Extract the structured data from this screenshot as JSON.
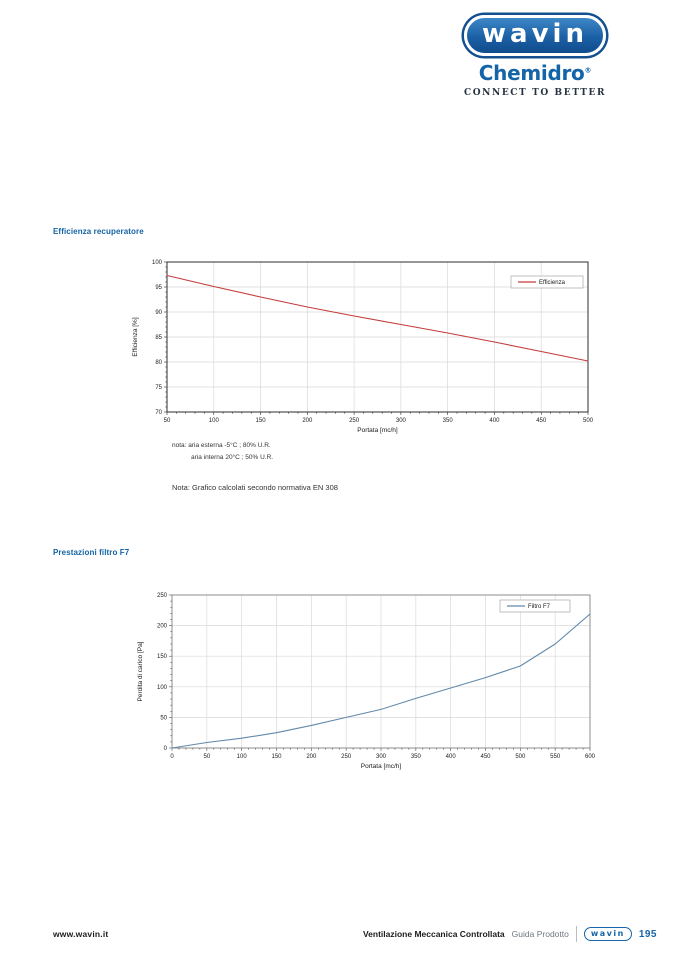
{
  "header": {
    "logo_text": "wavin",
    "brand": "Chemidro",
    "brand_reg": "®",
    "tagline": "CONNECT TO BETTER"
  },
  "sections": [
    {
      "title": "Efficienza recuperatore"
    },
    {
      "title": "Prestazioni filtro F7"
    }
  ],
  "notes": {
    "line1": "nota: aria esterna -5°C ; 80% U.R.",
    "line2": "aria interna 20°C ; 50% U.R.",
    "line3": "Nota: Grafico calcolati secondo normativa EN 308"
  },
  "footer": {
    "website": "www.wavin.it",
    "doc_title": "Ventilazione Meccanica Controllata",
    "doc_subtitle": "Guida Prodotto",
    "logo_text": "wavin",
    "page_number": "195"
  },
  "colors": {
    "brand_blue": "#1565a8",
    "section_title_blue": "#1464a5",
    "tagline_dark": "#25323f",
    "efficienza_line_red": "#c43b3b",
    "filtro_line_blue": "#6189ab",
    "grid_gray": "#d9d9d9"
  },
  "chart_data": [
    {
      "type": "line",
      "name": "efficienza",
      "title": "",
      "xlabel": "Portata [mc/h]",
      "ylabel": "Efficienza [%]",
      "xlim": [
        50,
        500
      ],
      "ylim": [
        70,
        100
      ],
      "x_tick_step": 50,
      "y_tick_step": 5,
      "x_minor_step": 10,
      "y_minor_step": 1,
      "grid": true,
      "legend": {
        "label": "Efficienza",
        "position": "top-right-inside"
      },
      "series": [
        {
          "name": "Efficienza",
          "color": "#c43b3b",
          "x": [
            50,
            100,
            150,
            200,
            250,
            300,
            350,
            400,
            450,
            500
          ],
          "values": [
            97.3,
            95.1,
            93.0,
            91.0,
            89.2,
            87.5,
            85.8,
            84.0,
            82.1,
            80.2
          ]
        }
      ]
    },
    {
      "type": "line",
      "name": "filtro-f7",
      "title": "",
      "xlabel": "Portata [mc/h]",
      "ylabel": "Perdita di carico [Pa]",
      "xlim": [
        0,
        600
      ],
      "ylim": [
        0,
        250
      ],
      "x_tick_step": 50,
      "y_tick_step": 50,
      "x_minor_step": 10,
      "y_minor_step": 10,
      "grid": true,
      "legend": {
        "label": "Filtro F7",
        "position": "top-right-inside"
      },
      "series": [
        {
          "name": "Filtro F7",
          "color": "#6189ab",
          "x": [
            0,
            50,
            100,
            150,
            200,
            250,
            300,
            350,
            400,
            450,
            500,
            550,
            600
          ],
          "values": [
            0,
            9,
            16,
            25,
            37,
            50,
            63,
            81,
            98,
            115,
            134,
            170,
            219
          ]
        }
      ]
    }
  ]
}
